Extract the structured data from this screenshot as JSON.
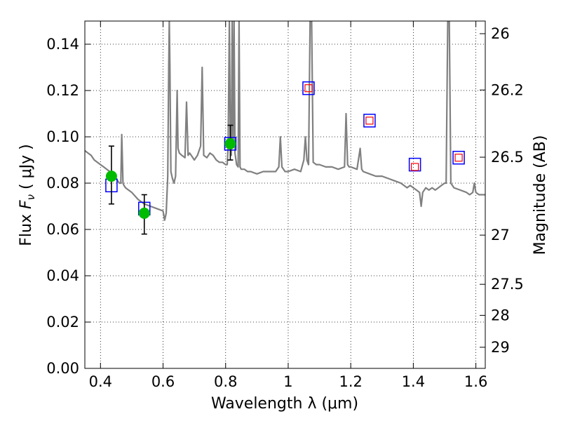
{
  "chart_data": {
    "type": "line",
    "xlabel": "Wavelength  λ (μm)",
    "ylabel_prefix": "Flux  ",
    "ylabel_symbol": "F",
    "ylabel_subscript": "ν",
    "ylabel_unit": "  ( μJy )",
    "y2label": "Magnitude (AB)",
    "xlim": [
      0.35,
      1.63
    ],
    "ylim": [
      0.0,
      0.15
    ],
    "grid": true,
    "x_ticks": [
      0.4,
      0.6,
      0.8,
      1.0,
      1.2,
      1.4,
      1.6
    ],
    "x_tick_labels": [
      "0.4",
      "0.6",
      "0.8",
      "1",
      "1.2",
      "1.4",
      "1.6"
    ],
    "y_ticks": [
      0.0,
      0.02,
      0.04,
      0.06,
      0.08,
      0.1,
      0.12,
      0.14
    ],
    "y_tick_labels": [
      "0.00",
      "0.02",
      "0.04",
      "0.06",
      "0.08",
      "0.10",
      "0.12",
      "0.14"
    ],
    "y2_ticks": [
      26.0,
      26.2,
      26.5,
      27.0,
      27.5,
      28.0,
      29.0
    ],
    "y2_tick_labels": [
      "26",
      "26.2",
      "26.5",
      "27",
      "27.5",
      "28",
      "29"
    ],
    "colors": {
      "spectrum": "#808080",
      "model_box": "#0000ff",
      "upper_inner": "#ff0000",
      "detection": "#00bb00",
      "errorbar": "#000000"
    },
    "series": [
      {
        "kind": "spectrum",
        "x": [
          0.35,
          0.36,
          0.37,
          0.38,
          0.39,
          0.4,
          0.41,
          0.42,
          0.43,
          0.44,
          0.45,
          0.46,
          0.465,
          0.468,
          0.472,
          0.475,
          0.48,
          0.5,
          0.52,
          0.54,
          0.56,
          0.58,
          0.6,
          0.605,
          0.61,
          0.615,
          0.618,
          0.62,
          0.622,
          0.625,
          0.63,
          0.635,
          0.64,
          0.645,
          0.648,
          0.652,
          0.66,
          0.67,
          0.675,
          0.68,
          0.685,
          0.69,
          0.7,
          0.71,
          0.72,
          0.725,
          0.73,
          0.74,
          0.75,
          0.76,
          0.77,
          0.78,
          0.79,
          0.8,
          0.805,
          0.808,
          0.812,
          0.815,
          0.818,
          0.821,
          0.824,
          0.827,
          0.83,
          0.835,
          0.84,
          0.843,
          0.846,
          0.85,
          0.86,
          0.87,
          0.88,
          0.9,
          0.92,
          0.94,
          0.96,
          0.97,
          0.975,
          0.98,
          0.99,
          1.0,
          1.02,
          1.04,
          1.05,
          1.055,
          1.06,
          1.065,
          1.07,
          1.075,
          1.08,
          1.09,
          1.1,
          1.12,
          1.14,
          1.16,
          1.18,
          1.185,
          1.19,
          1.195,
          1.2,
          1.22,
          1.23,
          1.235,
          1.24,
          1.26,
          1.28,
          1.3,
          1.32,
          1.34,
          1.36,
          1.37,
          1.38,
          1.39,
          1.4,
          1.41,
          1.42,
          1.425,
          1.43,
          1.44,
          1.45,
          1.46,
          1.47,
          1.48,
          1.49,
          1.5,
          1.505,
          1.51,
          1.515,
          1.52,
          1.53,
          1.55,
          1.57,
          1.58,
          1.59,
          1.595,
          1.6,
          1.61,
          1.62,
          1.63
        ],
        "y": [
          0.094,
          0.093,
          0.092,
          0.09,
          0.089,
          0.088,
          0.087,
          0.086,
          0.085,
          0.084,
          0.082,
          0.08,
          0.08,
          0.101,
          0.08,
          0.079,
          0.078,
          0.076,
          0.073,
          0.071,
          0.07,
          0.069,
          0.068,
          0.064,
          0.067,
          0.083,
          0.13,
          0.15,
          0.13,
          0.085,
          0.082,
          0.08,
          0.083,
          0.12,
          0.095,
          0.093,
          0.092,
          0.091,
          0.115,
          0.092,
          0.093,
          0.092,
          0.09,
          0.092,
          0.096,
          0.13,
          0.092,
          0.091,
          0.093,
          0.092,
          0.09,
          0.089,
          0.089,
          0.088,
          0.088,
          0.096,
          0.15,
          0.1,
          0.092,
          0.15,
          0.096,
          0.15,
          0.093,
          0.088,
          0.087,
          0.15,
          0.087,
          0.086,
          0.086,
          0.085,
          0.085,
          0.084,
          0.085,
          0.085,
          0.085,
          0.087,
          0.1,
          0.087,
          0.085,
          0.085,
          0.086,
          0.085,
          0.09,
          0.1,
          0.09,
          0.088,
          0.15,
          0.15,
          0.089,
          0.088,
          0.088,
          0.087,
          0.087,
          0.086,
          0.087,
          0.11,
          0.088,
          0.087,
          0.087,
          0.086,
          0.095,
          0.086,
          0.085,
          0.084,
          0.083,
          0.083,
          0.082,
          0.081,
          0.08,
          0.079,
          0.078,
          0.079,
          0.078,
          0.077,
          0.076,
          0.07,
          0.076,
          0.078,
          0.077,
          0.078,
          0.077,
          0.078,
          0.079,
          0.08,
          0.08,
          0.15,
          0.15,
          0.08,
          0.078,
          0.077,
          0.076,
          0.075,
          0.076,
          0.08,
          0.076,
          0.075,
          0.075,
          0.075
        ]
      },
      {
        "kind": "model_boxes",
        "x": [
          0.435,
          0.54,
          0.815,
          1.065,
          1.26,
          1.405,
          1.545
        ],
        "y": [
          0.079,
          0.069,
          0.097,
          0.121,
          0.107,
          0.088,
          0.091
        ]
      },
      {
        "kind": "upper_limits",
        "x": [
          1.065,
          1.26,
          1.405,
          1.545
        ],
        "y": [
          0.121,
          0.107,
          0.087,
          0.091
        ]
      },
      {
        "kind": "detections",
        "x": [
          0.435,
          0.54,
          0.815
        ],
        "y": [
          0.083,
          0.067,
          0.097
        ],
        "yerr_low": [
          0.012,
          0.009,
          0.007
        ],
        "yerr_high": [
          0.013,
          0.008,
          0.008
        ]
      }
    ]
  }
}
